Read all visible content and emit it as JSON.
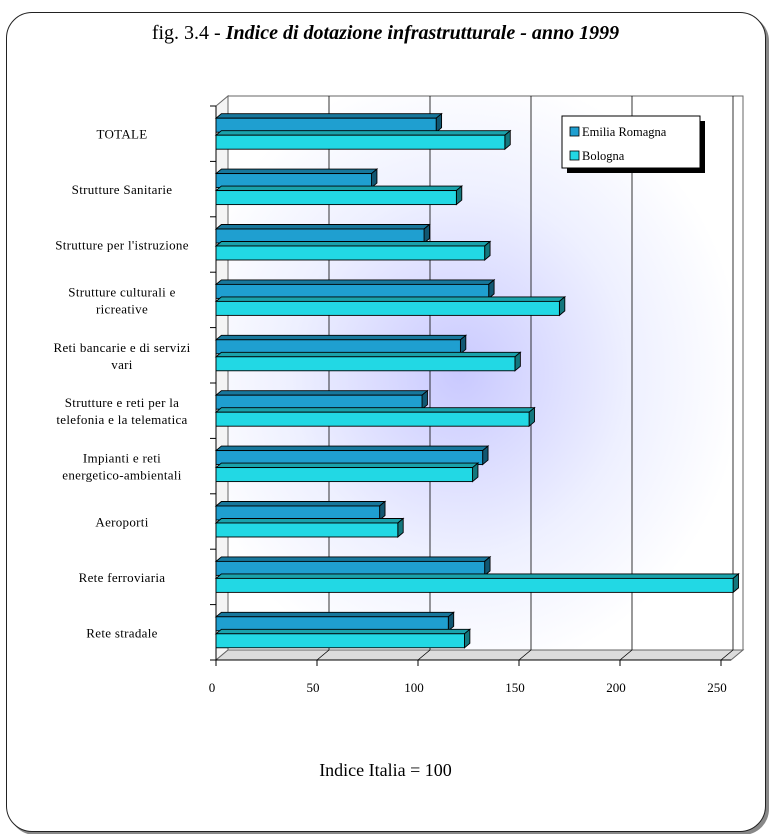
{
  "header": {
    "prefix": "fig. 3.4 - ",
    "title": "Indice di dotazione infrastrutturale - anno 1999"
  },
  "footnote": "Indice Italia = 100",
  "colors": {
    "series1": "#1f9fd0",
    "series2": "#22d8e4",
    "outline": "#000000",
    "grid": "#000000"
  },
  "chart_data": {
    "type": "bar",
    "orientation": "horizontal",
    "title": "Indice di dotazione infrastrutturale - anno 1999",
    "categories": [
      "TOTALE",
      "Strutture Sanitarie",
      "Strutture per l'istruzione",
      "Strutture culturali e ricreative",
      "Reti bancarie e di servizi vari",
      "Strutture e reti per la telefonia e la telematica",
      "Impianti e reti energetico-ambientali",
      "Aeroporti",
      "Rete ferroviaria",
      "Rete stradale"
    ],
    "category_lines": [
      [
        "TOTALE"
      ],
      [
        "Strutture Sanitarie"
      ],
      [
        "Strutture per l'istruzione"
      ],
      [
        "Strutture culturali e",
        "ricreative"
      ],
      [
        "Reti bancarie e di servizi",
        "vari"
      ],
      [
        "Strutture e reti per la",
        "telefonia e la telematica"
      ],
      [
        "Impianti e reti",
        "energetico-ambientali"
      ],
      [
        "Aeroporti"
      ],
      [
        "Rete ferroviaria"
      ],
      [
        "Rete stradale"
      ]
    ],
    "series": [
      {
        "name": "Emilia Romagna",
        "values": [
          109,
          77,
          103,
          135,
          121,
          102,
          132,
          81,
          133,
          115
        ]
      },
      {
        "name": "Bologna",
        "values": [
          143,
          119,
          133,
          170,
          148,
          155,
          127,
          90,
          256,
          123
        ]
      }
    ],
    "xlim": [
      0,
      250
    ],
    "xticks": [
      0,
      50,
      100,
      150,
      200,
      250
    ],
    "grid": true,
    "legend_position": "top-right"
  }
}
